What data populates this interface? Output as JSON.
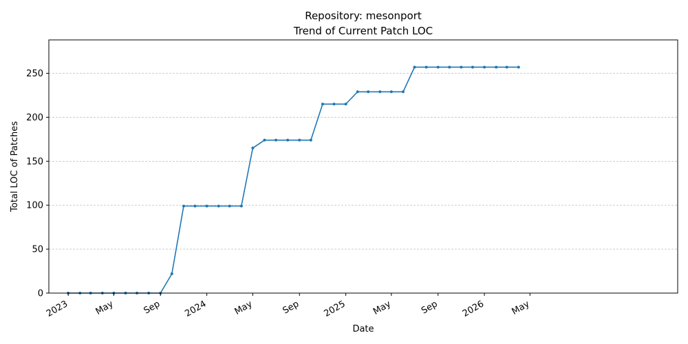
{
  "chart_data": {
    "type": "line",
    "title": "Repository: mesonport",
    "subtitle": "Trend of Current Patch LOC",
    "xlabel": "Date",
    "ylabel": "Total LOC of Patches",
    "ylim": [
      0,
      288
    ],
    "yticks": [
      0,
      50,
      100,
      150,
      200,
      250
    ],
    "xlim": [
      "2022-11-11",
      "2027-05-25"
    ],
    "xticks": [
      {
        "date": "2023-01-01",
        "label": "2023"
      },
      {
        "date": "2023-05-01",
        "label": "May"
      },
      {
        "date": "2023-09-01",
        "label": "Sep"
      },
      {
        "date": "2024-01-01",
        "label": "2024"
      },
      {
        "date": "2024-05-01",
        "label": "May"
      },
      {
        "date": "2024-09-01",
        "label": "Sep"
      },
      {
        "date": "2025-01-01",
        "label": "2025"
      },
      {
        "date": "2025-05-01",
        "label": "May"
      },
      {
        "date": "2025-09-01",
        "label": "Sep"
      },
      {
        "date": "2026-01-01",
        "label": "2026"
      },
      {
        "date": "2026-05-01",
        "label": "May"
      }
    ],
    "grid": "y-dashed",
    "color": "#1f77b4",
    "series": [
      {
        "x": [
          "2023-01-01",
          "2023-02-01",
          "2023-03-01",
          "2023-04-01",
          "2023-05-01",
          "2023-06-01",
          "2023-07-01",
          "2023-08-01",
          "2023-09-01",
          "2023-10-01",
          "2023-11-01",
          "2023-12-01",
          "2024-01-01",
          "2024-02-01",
          "2024-03-01",
          "2024-04-01",
          "2024-05-01",
          "2024-06-01",
          "2024-07-01",
          "2024-08-01",
          "2024-09-01",
          "2024-10-01",
          "2024-11-01",
          "2024-12-01",
          "2025-01-01",
          "2025-02-01",
          "2025-03-01",
          "2025-04-01",
          "2025-05-01",
          "2025-06-01",
          "2025-07-01",
          "2025-08-01",
          "2025-09-01",
          "2025-10-01",
          "2025-11-01",
          "2025-12-01",
          "2026-01-01",
          "2026-02-01",
          "2026-03-01",
          "2026-04-01"
        ],
        "values": [
          0,
          0,
          0,
          0,
          0,
          0,
          0,
          0,
          0,
          22,
          99,
          99,
          99,
          99,
          99,
          99,
          165,
          174,
          174,
          174,
          174,
          174,
          215,
          215,
          215,
          229,
          229,
          229,
          229,
          229,
          257,
          257,
          257,
          257,
          257,
          257,
          257,
          257,
          257,
          257
        ]
      }
    ]
  }
}
